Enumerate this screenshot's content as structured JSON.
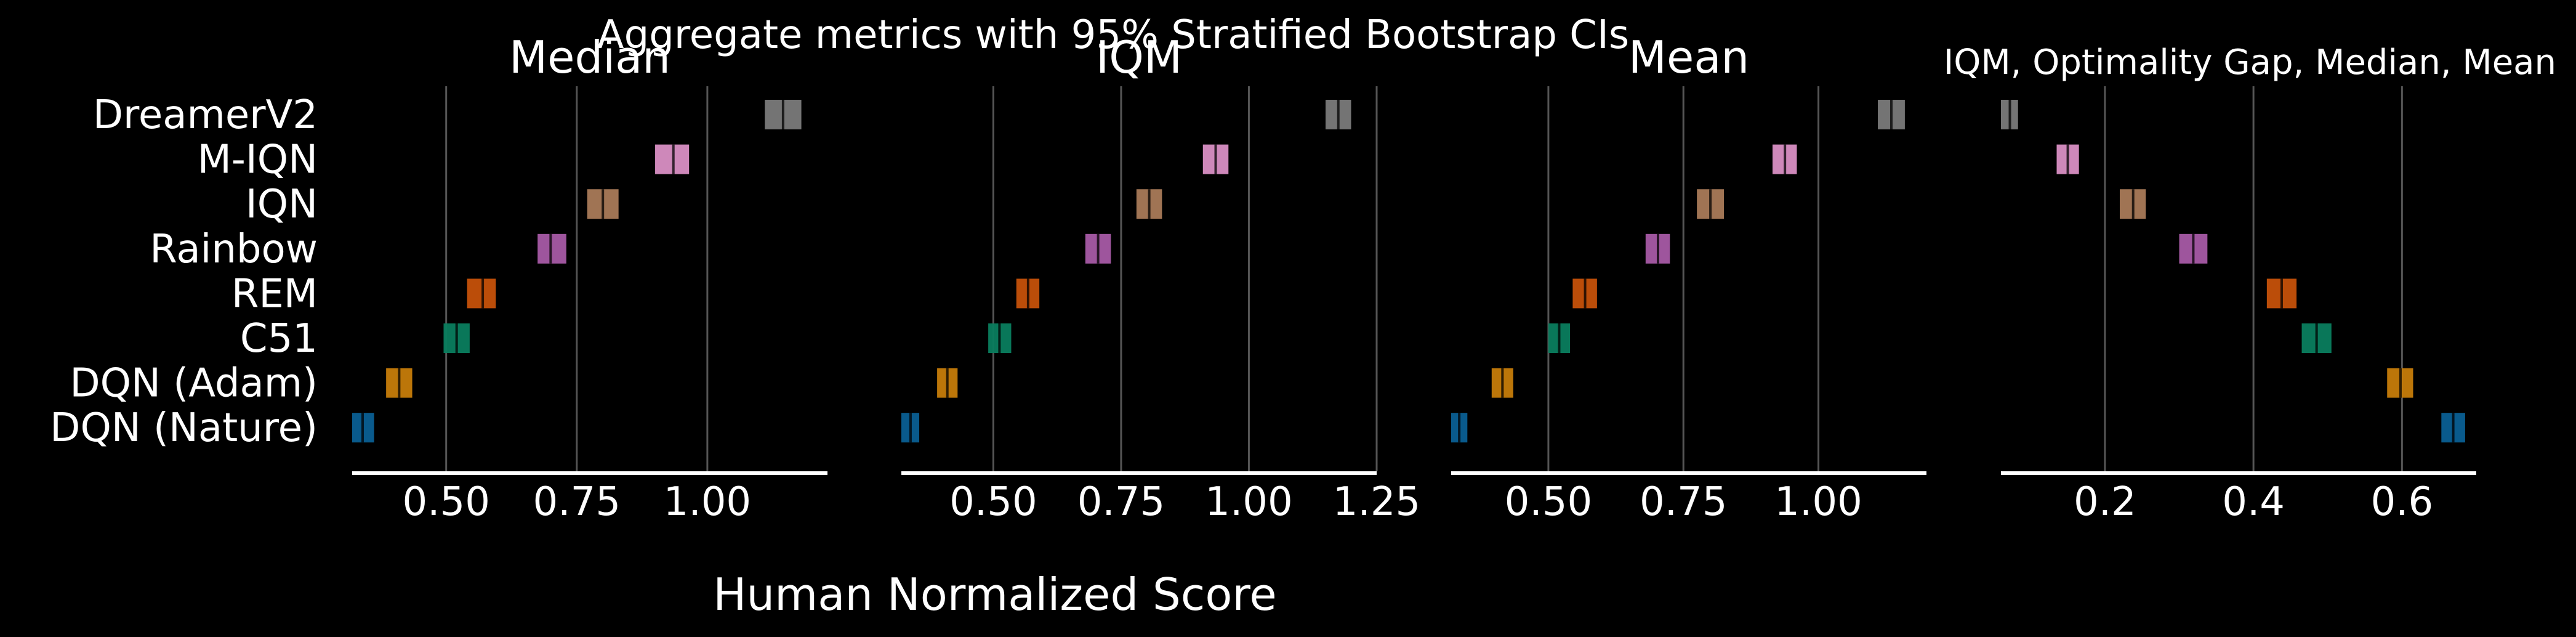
{
  "chart_data": {
    "type": "interval",
    "title": "Aggregate metrics with 95% Stratified Bootstrap CIs",
    "xlabel": "Human Normalized Score",
    "categories": [
      "DreamerV2",
      "M-IQN",
      "IQN",
      "Rainbow",
      "REM",
      "C51",
      "DQN (Adam)",
      "DQN (Nature)"
    ],
    "colors": {
      "DreamerV2": "#7a7a7a",
      "M-IQN": "#d98fc4",
      "IQN": "#a97a58",
      "Rainbow": "#a75aa5",
      "REM": "#c5510a",
      "C51": "#0a7d5e",
      "DQN (Adam)": "#c67c0a",
      "DQN (Nature)": "#0a5f93"
    },
    "panels": [
      {
        "title": "Median",
        "xlim": [
          0.32,
          1.23
        ],
        "ticks": [
          0.5,
          0.75,
          1.0
        ],
        "tick_labels": [
          "0.50",
          "0.75",
          "1.00"
        ],
        "intervals": [
          {
            "name": "DreamerV2",
            "low": 1.11,
            "high": 1.18,
            "point": 1.145
          },
          {
            "name": "M-IQN",
            "low": 0.9,
            "high": 0.965,
            "point": 0.935
          },
          {
            "name": "IQN",
            "low": 0.77,
            "high": 0.83,
            "point": 0.8
          },
          {
            "name": "Rainbow",
            "low": 0.675,
            "high": 0.73,
            "point": 0.7
          },
          {
            "name": "REM",
            "low": 0.54,
            "high": 0.595,
            "point": 0.57
          },
          {
            "name": "C51",
            "low": 0.495,
            "high": 0.545,
            "point": 0.52
          },
          {
            "name": "DQN (Adam)",
            "low": 0.385,
            "high": 0.435,
            "point": 0.41
          },
          {
            "name": "DQN (Nature)",
            "low": 0.32,
            "high": 0.362,
            "point": 0.34
          }
        ]
      },
      {
        "title": "IQM",
        "xlim": [
          0.32,
          1.25
        ],
        "ticks": [
          0.5,
          0.75,
          1.0,
          1.25
        ],
        "tick_labels": [
          "0.50",
          "0.75",
          "1.00",
          "1.25"
        ],
        "intervals": [
          {
            "name": "DreamerV2",
            "low": 1.15,
            "high": 1.2,
            "point": 1.175
          },
          {
            "name": "M-IQN",
            "low": 0.91,
            "high": 0.96,
            "point": 0.935
          },
          {
            "name": "IQN",
            "low": 0.78,
            "high": 0.83,
            "point": 0.805
          },
          {
            "name": "Rainbow",
            "low": 0.68,
            "high": 0.73,
            "point": 0.705
          },
          {
            "name": "REM",
            "low": 0.545,
            "high": 0.59,
            "point": 0.568
          },
          {
            "name": "C51",
            "low": 0.49,
            "high": 0.535,
            "point": 0.512
          },
          {
            "name": "DQN (Adam)",
            "low": 0.39,
            "high": 0.43,
            "point": 0.41
          },
          {
            "name": "DQN (Nature)",
            "low": 0.32,
            "high": 0.355,
            "point": 0.338
          }
        ]
      },
      {
        "title": "Mean",
        "xlim": [
          0.32,
          1.2
        ],
        "ticks": [
          0.5,
          0.75,
          1.0
        ],
        "tick_labels": [
          "0.50",
          "0.75",
          "1.00"
        ],
        "intervals": [
          {
            "name": "DreamerV2",
            "low": 1.11,
            "high": 1.16,
            "point": 1.135
          },
          {
            "name": "M-IQN",
            "low": 0.915,
            "high": 0.96,
            "point": 0.938
          },
          {
            "name": "IQN",
            "low": 0.775,
            "high": 0.825,
            "point": 0.8
          },
          {
            "name": "Rainbow",
            "low": 0.68,
            "high": 0.725,
            "point": 0.703
          },
          {
            "name": "REM",
            "low": 0.545,
            "high": 0.59,
            "point": 0.568
          },
          {
            "name": "C51",
            "low": 0.5,
            "high": 0.54,
            "point": 0.52
          },
          {
            "name": "DQN (Adam)",
            "low": 0.395,
            "high": 0.435,
            "point": 0.415
          },
          {
            "name": "DQN (Nature)",
            "low": 0.32,
            "high": 0.35,
            "point": 0.335
          }
        ]
      },
      {
        "title": "IQM, Optimality Gap, Median, Mean",
        "xlim": [
          0.06,
          0.7
        ],
        "ticks": [
          0.2,
          0.4,
          0.6
        ],
        "tick_labels": [
          "0.2",
          "0.4",
          "0.6"
        ],
        "intervals": [
          {
            "name": "DreamerV2",
            "low": 0.06,
            "high": 0.083,
            "point": 0.072
          },
          {
            "name": "M-IQN",
            "low": 0.135,
            "high": 0.165,
            "point": 0.15
          },
          {
            "name": "IQN",
            "low": 0.22,
            "high": 0.255,
            "point": 0.238
          },
          {
            "name": "Rainbow",
            "low": 0.3,
            "high": 0.338,
            "point": 0.319
          },
          {
            "name": "REM",
            "low": 0.418,
            "high": 0.458,
            "point": 0.438
          },
          {
            "name": "C51",
            "low": 0.465,
            "high": 0.505,
            "point": 0.485
          },
          {
            "name": "DQN (Adam)",
            "low": 0.58,
            "high": 0.615,
            "point": 0.598
          },
          {
            "name": "DQN (Nature)",
            "low": 0.653,
            "high": 0.685,
            "point": 0.669
          }
        ]
      }
    ]
  }
}
